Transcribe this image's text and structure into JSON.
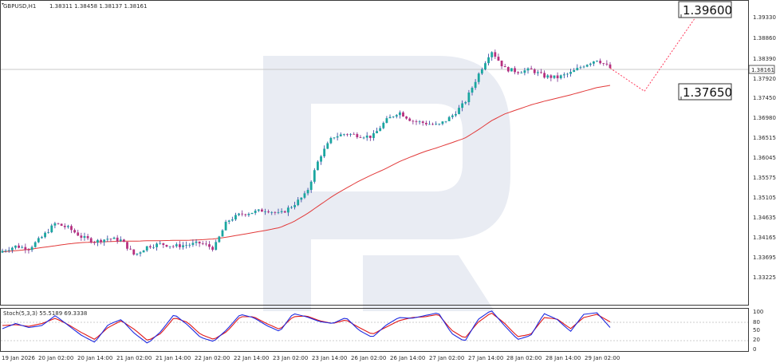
{
  "header": {
    "symbol": "GBPUSD,H1",
    "ohlc": "1.38311 1.38458 1.38137 1.38161"
  },
  "oscillator": {
    "label": "Stoch(5,3,3) 55.5189 69.3338"
  },
  "colors": {
    "bull_candle": "#1aa6a0",
    "bear_candle": "#b8307f",
    "wick_bull": "#2a3a9c",
    "wick_bear": "#7a2a8c",
    "moving_average": "#e23a3a",
    "forecast": "#ff3b5c",
    "stoch_main": "#1f2be0",
    "stoch_signal": "#e01818",
    "watermark": "#e9ecf3"
  },
  "chart_data": [
    {
      "type": "candlestick",
      "symbol": "GBPUSD",
      "timeframe": "H1",
      "price_axis_ticks": [
        "1.39330",
        "1.38860",
        "1.38390",
        "1.37920",
        "1.37450",
        "1.36980",
        "1.36515",
        "1.36045",
        "1.35575",
        "1.35105",
        "1.34635",
        "1.34165",
        "1.33695",
        "1.33225"
      ],
      "ylim": [
        1.33,
        1.396
      ],
      "x_tick_labels": [
        "19 Jan 2026",
        "20 Jan 02:00",
        "20 Jan 14:00",
        "21 Jan 02:00",
        "21 Jan 14:00",
        "22 Jan 02:00",
        "22 Jan 14:00",
        "23 Jan 02:00",
        "23 Jan 14:00",
        "26 Jan 02:00",
        "26 Jan 14:00",
        "27 Jan 02:00",
        "27 Jan 14:00",
        "28 Jan 02:00",
        "28 Jan 14:00",
        "29 Jan 02:00"
      ],
      "current_price": "1.38161",
      "forecast_levels": [
        "1.39600",
        "1.37650"
      ],
      "forecast_path": [
        1.3816,
        1.3765,
        1.396
      ],
      "close_path": [
        1.3415,
        1.3425,
        1.342,
        1.3445,
        1.3475,
        1.3465,
        1.3445,
        1.3435,
        1.3442,
        1.3438,
        1.3405,
        1.3425,
        1.343,
        1.3425,
        1.3428,
        1.3432,
        1.342,
        1.348,
        1.3495,
        1.35,
        1.3505,
        1.3495,
        1.3515,
        1.354,
        1.362,
        1.3665,
        1.3672,
        1.3668,
        1.3665,
        1.37,
        1.372,
        1.37,
        1.3695,
        1.369,
        1.371,
        1.374,
        1.38,
        1.3855,
        1.3815,
        1.3808,
        1.3812,
        1.3798,
        1.3795,
        1.3805,
        1.3822,
        1.3835,
        1.3816
      ],
      "moving_average_path": [
        1.3413,
        1.3415,
        1.3418,
        1.3422,
        1.3426,
        1.343,
        1.3433,
        1.3434,
        1.3435,
        1.3436,
        1.3436,
        1.3437,
        1.3437,
        1.3438,
        1.3438,
        1.3439,
        1.3441,
        1.3445,
        1.345,
        1.3455,
        1.346,
        1.3466,
        1.3478,
        1.3495,
        1.3515,
        1.3535,
        1.3552,
        1.3568,
        1.3582,
        1.3595,
        1.361,
        1.3622,
        1.3633,
        1.3642,
        1.3652,
        1.3662,
        1.368,
        1.37,
        1.3715,
        1.3725,
        1.3735,
        1.3743,
        1.375,
        1.3757,
        1.3765,
        1.3773,
        1.3778
      ]
    },
    {
      "type": "line",
      "name": "Stoch(5,3,3)",
      "values_label": "55.5189 69.3338",
      "levels": [
        "100",
        "80",
        "50",
        "20",
        "0"
      ],
      "ylim": [
        0,
        100
      ],
      "main_path": [
        52,
        65,
        55,
        60,
        85,
        60,
        35,
        18,
        62,
        75,
        40,
        15,
        45,
        88,
        62,
        30,
        20,
        50,
        88,
        80,
        60,
        45,
        90,
        82,
        70,
        65,
        80,
        48,
        30,
        60,
        80,
        78,
        85,
        92,
        40,
        20,
        75,
        98,
        60,
        25,
        35,
        90,
        75,
        45,
        88,
        92,
        55
      ],
      "signal_path": [
        60,
        62,
        58,
        65,
        78,
        62,
        42,
        25,
        55,
        72,
        50,
        22,
        40,
        80,
        68,
        38,
        25,
        45,
        82,
        82,
        65,
        50,
        82,
        84,
        72,
        65,
        74,
        55,
        38,
        55,
        72,
        80,
        82,
        88,
        48,
        28,
        68,
        92,
        66,
        32,
        38,
        80,
        76,
        52,
        80,
        88,
        69
      ]
    }
  ]
}
